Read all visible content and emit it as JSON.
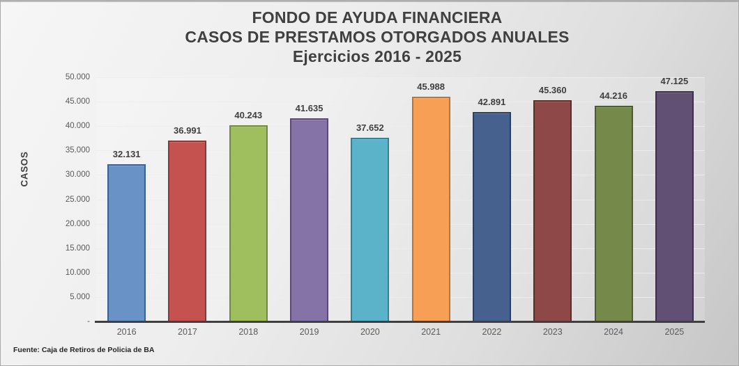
{
  "title": {
    "line1": "FONDO DE AYUDA FINANCIERA",
    "line2": "CASOS DE PRESTAMOS OTORGADOS ANUALES",
    "line3": "Ejercicios 2016 - 2025"
  },
  "y_axis": {
    "label": "CASOS",
    "tick_labels": [
      "50.000",
      "45.000",
      "40.000",
      "35.000",
      "30.000",
      "25.000",
      "20.000",
      "15.000",
      "10.000",
      "5.000",
      "-"
    ],
    "tick_values": [
      50000,
      45000,
      40000,
      35000,
      30000,
      25000,
      20000,
      15000,
      10000,
      5000,
      0
    ]
  },
  "footer": {
    "source": "Fuente: Caja de Retiros de Policia de BA"
  },
  "chart_data": {
    "type": "bar",
    "title": "FONDO DE AYUDA FINANCIERA - CASOS DE PRESTAMOS OTORGADOS ANUALES - Ejercicios 2016 - 2025",
    "categories": [
      "2016",
      "2017",
      "2018",
      "2019",
      "2020",
      "2021",
      "2022",
      "2023",
      "2024",
      "2025"
    ],
    "values": [
      32131,
      36991,
      40243,
      41635,
      37652,
      45988,
      42891,
      45360,
      44216,
      47125
    ],
    "value_labels": [
      "32.131",
      "36.991",
      "40.243",
      "41.635",
      "37.652",
      "45.988",
      "42.891",
      "45.360",
      "44.216",
      "47.125"
    ],
    "bar_fill_colors": [
      "#6992C7",
      "#C6524F",
      "#9FBE5D",
      "#8573A7",
      "#5BB3C9",
      "#F7A055",
      "#46618D",
      "#8D4847",
      "#75894A",
      "#615073"
    ],
    "bar_border_colors": [
      "#3E6090",
      "#8E3734",
      "#6E8C3B",
      "#5A4877",
      "#2F8399",
      "#BE7334",
      "#2B3F5F",
      "#5E2B2A",
      "#4C5C2C",
      "#3C3049"
    ],
    "xlabel": "",
    "ylabel": "CASOS",
    "ylim": [
      0,
      50000
    ],
    "grid": true,
    "legend": false,
    "data_labels": true
  }
}
